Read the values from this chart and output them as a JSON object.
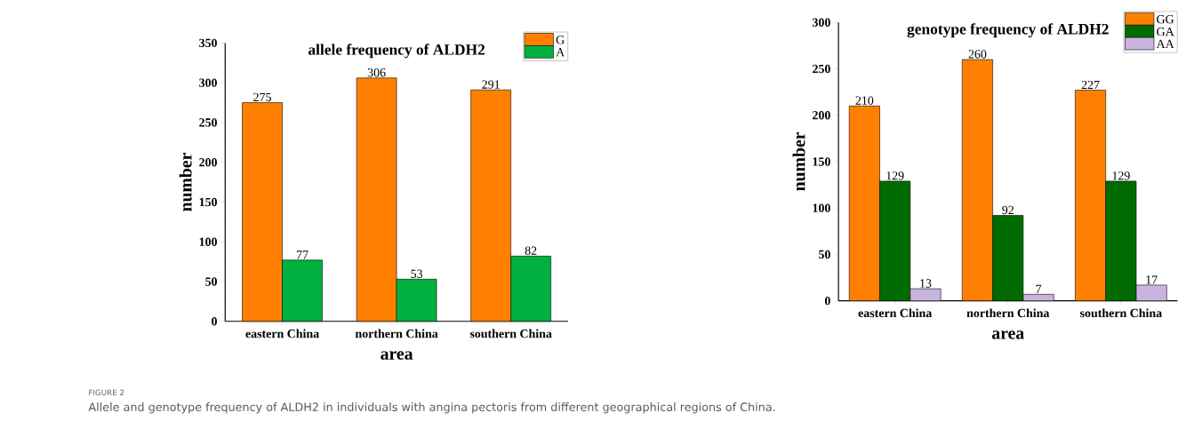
{
  "chart_data": [
    {
      "type": "bar",
      "title": "allele frequency of ALDH2",
      "xlabel": "area",
      "ylabel": "number",
      "categories": [
        "eastern China",
        "northern China",
        "southern China"
      ],
      "series": [
        {
          "name": "G",
          "color": "#ff8000",
          "values": [
            275,
            306,
            291
          ]
        },
        {
          "name": "A",
          "color": "#00b140",
          "values": [
            77,
            53,
            82
          ]
        }
      ],
      "ylim": [
        0,
        350
      ],
      "yticks": [
        0,
        50,
        100,
        150,
        200,
        250,
        300,
        350
      ],
      "legend": "top right",
      "data_labels": true,
      "annotations": [
        "FIGURE 2",
        "Allele and genotype frequency of ALDH2 in individuals with angina pectoris from different geographical regions of China."
      ]
    },
    {
      "type": "bar",
      "title": "genotype frequency of ALDH2",
      "xlabel": "area",
      "ylabel": "number",
      "categories": [
        "eastern China",
        "northern China",
        "southern China"
      ],
      "series": [
        {
          "name": "GG",
          "color": "#ff8000",
          "values": [
            210,
            260,
            227
          ]
        },
        {
          "name": "GA",
          "color": "#006b00",
          "values": [
            129,
            92,
            129
          ]
        },
        {
          "name": "AA",
          "color": "#c8b4dc",
          "values": [
            13,
            7,
            17
          ]
        }
      ],
      "ylim": [
        0,
        300
      ],
      "yticks": [
        0,
        50,
        100,
        150,
        200,
        250,
        300
      ],
      "legend": "top right",
      "data_labels": true
    }
  ]
}
